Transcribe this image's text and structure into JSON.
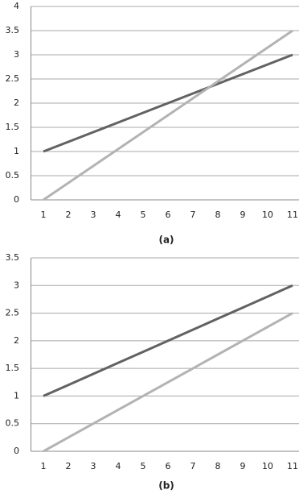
{
  "chart_data": [
    {
      "type": "line",
      "caption": "(a)",
      "categories": [
        1,
        2,
        3,
        4,
        5,
        6,
        7,
        8,
        9,
        10,
        11
      ],
      "series": [
        {
          "color": "#626262",
          "values": [
            1,
            1.2,
            1.4,
            1.6,
            1.8,
            2,
            2.2,
            2.4,
            2.6,
            2.8,
            3
          ]
        },
        {
          "color": "#b3b3b3",
          "values": [
            0,
            0.35,
            0.7,
            1.05,
            1.4,
            1.75,
            2.1,
            2.45,
            2.8,
            3.15,
            3.5
          ]
        }
      ],
      "ylim": [
        0,
        4
      ],
      "yticks": [
        0,
        0.5,
        1,
        1.5,
        2,
        2.5,
        3,
        3.5,
        4
      ],
      "grid": true
    },
    {
      "type": "line",
      "caption": "(b)",
      "categories": [
        1,
        2,
        3,
        4,
        5,
        6,
        7,
        8,
        9,
        10,
        11
      ],
      "series": [
        {
          "color": "#626262",
          "values": [
            1,
            1.2,
            1.4,
            1.6,
            1.8,
            2,
            2.2,
            2.4,
            2.6,
            2.8,
            3
          ]
        },
        {
          "color": "#b3b3b3",
          "values": [
            0,
            0.25,
            0.5,
            0.75,
            1,
            1.25,
            1.5,
            1.75,
            2,
            2.25,
            2.5
          ]
        }
      ],
      "ylim": [
        0,
        3.5
      ],
      "yticks": [
        0,
        0.5,
        1,
        1.5,
        2,
        2.5,
        3,
        3.5
      ],
      "grid": true
    }
  ]
}
